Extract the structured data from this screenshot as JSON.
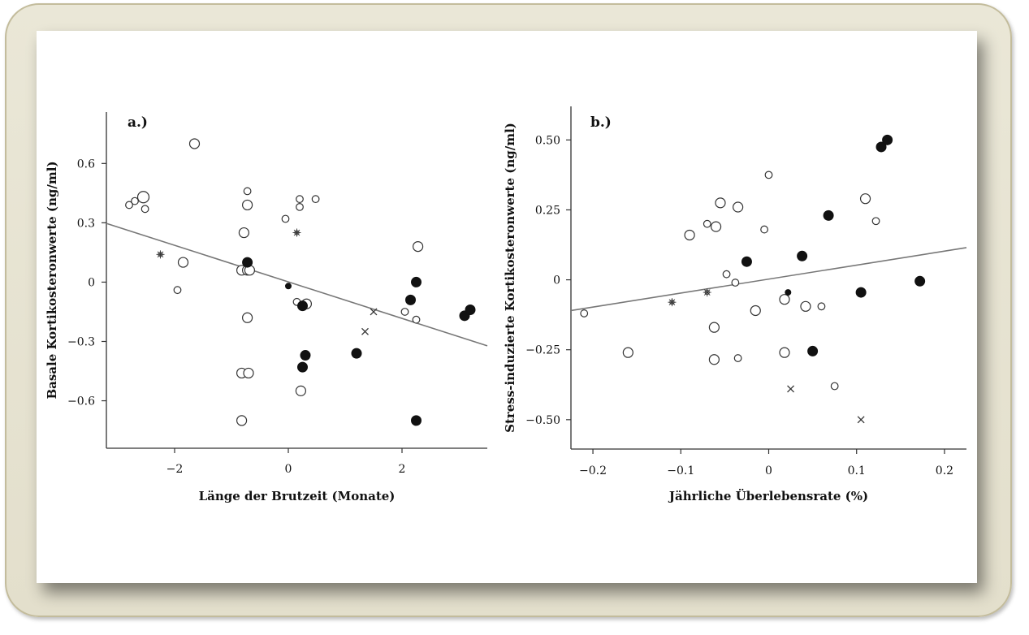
{
  "chart_data": [
    {
      "type": "scatter",
      "panel_label": "a.)",
      "xlabel": "Länge der Brutzeit (Monate)",
      "ylabel": "Basale Kortikosteronwerte (ng/ml)",
      "xlim": [
        -3.2,
        3.5
      ],
      "ylim": [
        -0.84,
        0.86
      ],
      "x_ticks": [
        -2,
        0,
        2
      ],
      "x_tick_labels": [
        "−2",
        "0",
        "2"
      ],
      "y_ticks": [
        0.6,
        0.3,
        0,
        -0.3,
        -0.6
      ],
      "y_tick_labels": [
        "0.6",
        "0.3",
        "0",
        "−0.3",
        "−0.6"
      ],
      "regression": {
        "x": [
          -3.2,
          3.5
        ],
        "y": [
          0.297,
          -0.322
        ]
      },
      "points": [
        {
          "x": -2.8,
          "y": 0.39,
          "m": "open-s"
        },
        {
          "x": -2.7,
          "y": 0.41,
          "m": "open-s"
        },
        {
          "x": -2.55,
          "y": 0.43,
          "m": "open-l"
        },
        {
          "x": -2.52,
          "y": 0.37,
          "m": "open-s"
        },
        {
          "x": -2.25,
          "y": 0.14,
          "m": "star"
        },
        {
          "x": -1.95,
          "y": -0.04,
          "m": "open-s"
        },
        {
          "x": -1.85,
          "y": 0.1,
          "m": "open-m"
        },
        {
          "x": -1.65,
          "y": 0.7,
          "m": "open-m"
        },
        {
          "x": -0.82,
          "y": 0.06,
          "m": "open-m"
        },
        {
          "x": -0.78,
          "y": 0.25,
          "m": "open-m"
        },
        {
          "x": -0.72,
          "y": 0.46,
          "m": "open-s"
        },
        {
          "x": -0.72,
          "y": 0.39,
          "m": "open-m"
        },
        {
          "x": -0.72,
          "y": 0.06,
          "m": "open-m"
        },
        {
          "x": -0.68,
          "y": 0.06,
          "m": "open-m"
        },
        {
          "x": -0.72,
          "y": -0.18,
          "m": "open-m"
        },
        {
          "x": -0.82,
          "y": -0.46,
          "m": "open-m"
        },
        {
          "x": -0.7,
          "y": -0.46,
          "m": "open-m"
        },
        {
          "x": -0.82,
          "y": -0.7,
          "m": "open-m"
        },
        {
          "x": -0.72,
          "y": 0.1,
          "m": "filled-m"
        },
        {
          "x": -0.05,
          "y": 0.32,
          "m": "open-s"
        },
        {
          "x": 0.0,
          "y": -0.02,
          "m": "filled-s"
        },
        {
          "x": 0.15,
          "y": 0.25,
          "m": "star"
        },
        {
          "x": 0.2,
          "y": 0.42,
          "m": "open-s"
        },
        {
          "x": 0.2,
          "y": 0.38,
          "m": "open-s"
        },
        {
          "x": 0.15,
          "y": -0.1,
          "m": "open-s"
        },
        {
          "x": 0.32,
          "y": -0.11,
          "m": "open-m"
        },
        {
          "x": 0.25,
          "y": -0.12,
          "m": "filled-m"
        },
        {
          "x": 0.48,
          "y": 0.42,
          "m": "open-s"
        },
        {
          "x": 0.22,
          "y": -0.55,
          "m": "open-m"
        },
        {
          "x": 0.3,
          "y": -0.37,
          "m": "filled-m"
        },
        {
          "x": 0.25,
          "y": -0.43,
          "m": "filled-m"
        },
        {
          "x": 1.2,
          "y": -0.36,
          "m": "filled-m"
        },
        {
          "x": 1.35,
          "y": -0.25,
          "m": "cross"
        },
        {
          "x": 1.5,
          "y": -0.15,
          "m": "cross"
        },
        {
          "x": 2.05,
          "y": -0.15,
          "m": "open-s"
        },
        {
          "x": 2.15,
          "y": -0.09,
          "m": "filled-m"
        },
        {
          "x": 2.25,
          "y": 0.0,
          "m": "filled-m"
        },
        {
          "x": 2.28,
          "y": 0.18,
          "m": "open-m"
        },
        {
          "x": 2.25,
          "y": -0.19,
          "m": "open-s"
        },
        {
          "x": 2.25,
          "y": -0.7,
          "m": "filled-m"
        },
        {
          "x": 3.1,
          "y": -0.17,
          "m": "filled-m"
        },
        {
          "x": 3.2,
          "y": -0.14,
          "m": "filled-m"
        }
      ]
    },
    {
      "type": "scatter",
      "panel_label": "b.)",
      "xlabel": "Jährliche Überlebensrate (%)",
      "ylabel": "Stress-induzierte Kortikosteronwerte (ng/ml)",
      "xlim": [
        -0.225,
        0.225
      ],
      "ylim": [
        -0.605,
        0.62
      ],
      "x_ticks": [
        -0.2,
        -0.1,
        0,
        0.1,
        0.2
      ],
      "x_tick_labels": [
        "−0.2",
        "−0.1",
        "0",
        "0.1",
        "0.2"
      ],
      "y_ticks": [
        0.5,
        0.25,
        0,
        -0.25,
        -0.5
      ],
      "y_tick_labels": [
        "0.50",
        "0.25",
        "0",
        "−0.25",
        "−0.50"
      ],
      "regression": {
        "x": [
          -0.225,
          0.225
        ],
        "y": [
          -0.11,
          0.115
        ]
      },
      "points": [
        {
          "x": -0.21,
          "y": -0.12,
          "m": "open-s"
        },
        {
          "x": -0.16,
          "y": -0.26,
          "m": "open-m"
        },
        {
          "x": -0.11,
          "y": -0.08,
          "m": "star"
        },
        {
          "x": -0.09,
          "y": 0.16,
          "m": "open-m"
        },
        {
          "x": -0.07,
          "y": 0.2,
          "m": "open-s"
        },
        {
          "x": -0.06,
          "y": 0.19,
          "m": "open-m"
        },
        {
          "x": -0.055,
          "y": 0.275,
          "m": "open-m"
        },
        {
          "x": -0.07,
          "y": -0.045,
          "m": "star"
        },
        {
          "x": -0.062,
          "y": -0.17,
          "m": "open-m"
        },
        {
          "x": -0.062,
          "y": -0.285,
          "m": "open-m"
        },
        {
          "x": -0.048,
          "y": 0.02,
          "m": "open-s"
        },
        {
          "x": -0.035,
          "y": 0.26,
          "m": "open-m"
        },
        {
          "x": -0.038,
          "y": -0.01,
          "m": "open-s"
        },
        {
          "x": -0.035,
          "y": -0.28,
          "m": "open-s"
        },
        {
          "x": -0.025,
          "y": 0.065,
          "m": "filled-m"
        },
        {
          "x": -0.015,
          "y": -0.11,
          "m": "open-m"
        },
        {
          "x": -0.005,
          "y": 0.18,
          "m": "open-s"
        },
        {
          "x": 0.0,
          "y": 0.375,
          "m": "open-s"
        },
        {
          "x": 0.018,
          "y": -0.07,
          "m": "open-m"
        },
        {
          "x": 0.022,
          "y": -0.045,
          "m": "filled-s"
        },
        {
          "x": 0.018,
          "y": -0.26,
          "m": "open-m"
        },
        {
          "x": 0.025,
          "y": -0.39,
          "m": "cross"
        },
        {
          "x": 0.038,
          "y": 0.085,
          "m": "filled-m"
        },
        {
          "x": 0.042,
          "y": -0.095,
          "m": "open-m"
        },
        {
          "x": 0.05,
          "y": -0.255,
          "m": "filled-m"
        },
        {
          "x": 0.06,
          "y": -0.095,
          "m": "open-s"
        },
        {
          "x": 0.068,
          "y": 0.23,
          "m": "filled-m"
        },
        {
          "x": 0.075,
          "y": -0.38,
          "m": "open-s"
        },
        {
          "x": 0.105,
          "y": -0.045,
          "m": "filled-m"
        },
        {
          "x": 0.105,
          "y": -0.5,
          "m": "cross"
        },
        {
          "x": 0.11,
          "y": 0.29,
          "m": "open-m"
        },
        {
          "x": 0.122,
          "y": 0.21,
          "m": "open-s"
        },
        {
          "x": 0.128,
          "y": 0.475,
          "m": "filled-m"
        },
        {
          "x": 0.135,
          "y": 0.5,
          "m": "filled-m"
        },
        {
          "x": 0.172,
          "y": -0.005,
          "m": "filled-m"
        }
      ]
    }
  ]
}
